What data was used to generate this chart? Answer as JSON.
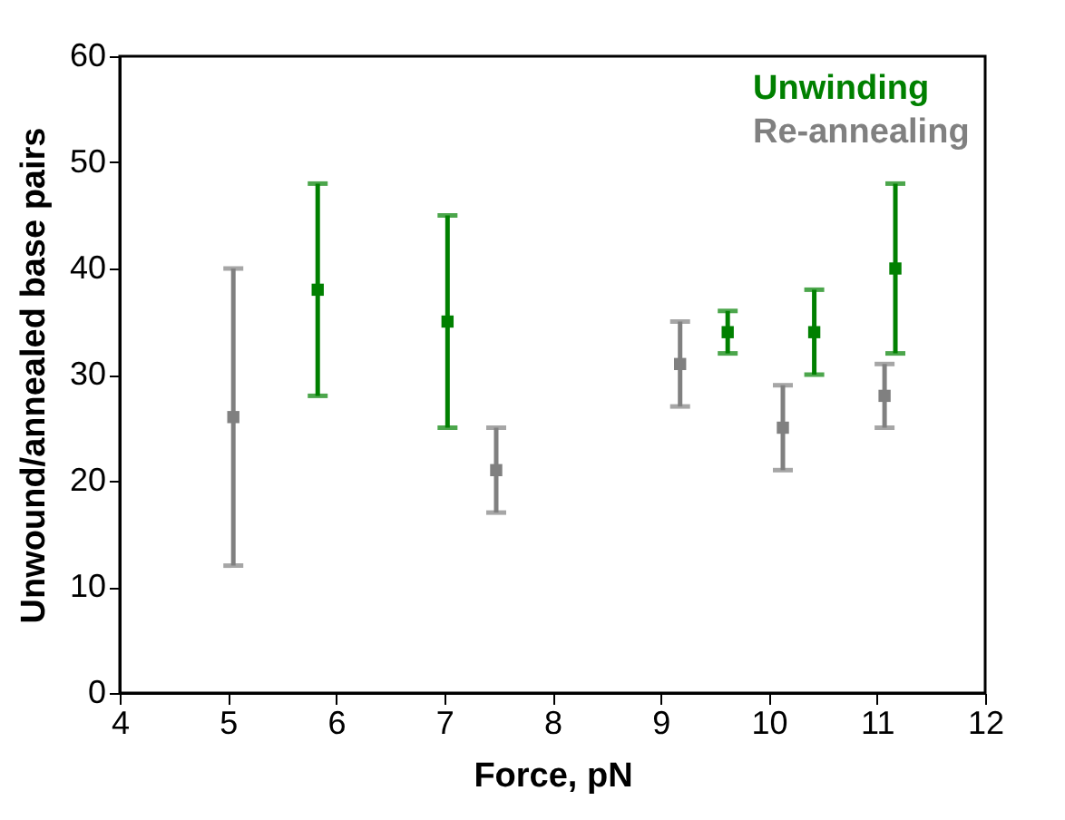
{
  "chart_data": {
    "type": "scatter",
    "xlabel": "Force, pN",
    "ylabel": "Unwound/annealed base pairs",
    "xlim": [
      4,
      12
    ],
    "xticks": [
      4,
      5,
      6,
      7,
      8,
      9,
      10,
      11,
      12
    ],
    "ylim": [
      0,
      60
    ],
    "yticks": [
      0,
      10,
      20,
      30,
      40,
      50,
      60
    ],
    "marker": "square",
    "legend": "top right",
    "grid": false,
    "series": [
      {
        "name": "Unwinding",
        "color": "#008000",
        "x": [
          5.83,
          7.03,
          9.62,
          10.42,
          11.17
        ],
        "values": [
          38,
          35,
          34,
          34,
          40
        ],
        "errors": [
          [
            28,
            48
          ],
          [
            25,
            45
          ],
          [
            32,
            36
          ],
          [
            30,
            38
          ],
          [
            32,
            48
          ]
        ]
      },
      {
        "name": "Re-annealing",
        "color": "#808080",
        "x": [
          5.05,
          7.48,
          9.18,
          10.13,
          11.07
        ],
        "values": [
          26,
          21,
          31,
          25,
          28
        ],
        "errors": [
          [
            12,
            40
          ],
          [
            17,
            25
          ],
          [
            27,
            35
          ],
          [
            21,
            29
          ],
          [
            25,
            31
          ]
        ]
      }
    ]
  }
}
